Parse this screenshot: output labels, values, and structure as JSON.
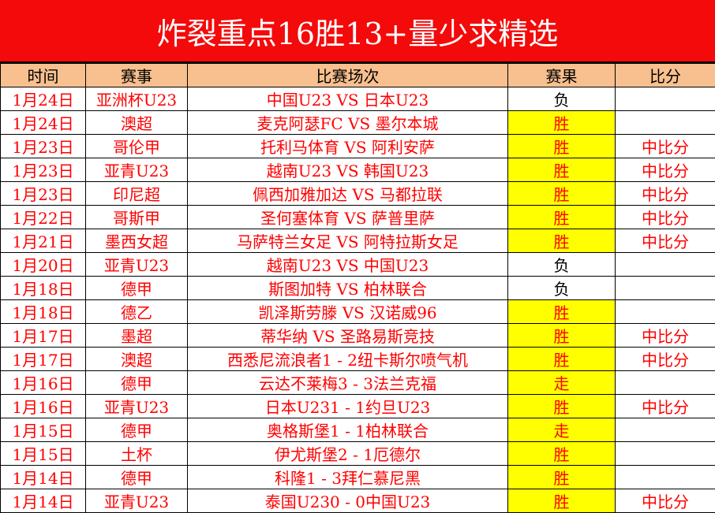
{
  "title": "炸裂重点16胜13+量少求精选",
  "colors": {
    "title_bg": "#f40a0a",
    "header_bg": "#f8c08e",
    "highlight": "#ffff00",
    "text": "#ff0000"
  },
  "headers": [
    "时间",
    "赛事",
    "比赛场次",
    "赛果",
    "比分"
  ],
  "rows": [
    {
      "date": "1月24日",
      "league": "亚洲杯U23",
      "match": "中国U23 VS 日本U23",
      "result": "负",
      "score": ""
    },
    {
      "date": "1月24日",
      "league": "澳超",
      "match": "麦克阿瑟FC VS 墨尔本城",
      "result": "胜",
      "score": ""
    },
    {
      "date": "1月23日",
      "league": "哥伦甲",
      "match": "托利马体育 VS 阿利安萨",
      "result": "胜",
      "score": "中比分"
    },
    {
      "date": "1月23日",
      "league": "亚青U23",
      "match": "越南U23 VS 韩国U23",
      "result": "胜",
      "score": "中比分"
    },
    {
      "date": "1月23日",
      "league": "印尼超",
      "match": "佩西加雅加达 VS 马都拉联",
      "result": "胜",
      "score": "中比分"
    },
    {
      "date": "1月22日",
      "league": "哥斯甲",
      "match": "圣何塞体育 VS 萨普里萨",
      "result": "胜",
      "score": "中比分"
    },
    {
      "date": "1月21日",
      "league": "墨西女超",
      "match": "马萨特兰女足 VS 阿特拉斯女足",
      "result": "胜",
      "score": "中比分"
    },
    {
      "date": "1月20日",
      "league": "亚青U23",
      "match": "越南U23 VS 中国U23",
      "result": "负",
      "score": ""
    },
    {
      "date": "1月18日",
      "league": "德甲",
      "match": "斯图加特 VS 柏林联合",
      "result": "负",
      "score": ""
    },
    {
      "date": "1月18日",
      "league": "德乙",
      "match": "凯泽斯劳滕 VS 汉诺威96",
      "result": "胜",
      "score": ""
    },
    {
      "date": "1月17日",
      "league": "墨超",
      "match": "蒂华纳 VS 圣路易斯竞技",
      "result": "胜",
      "score": "中比分"
    },
    {
      "date": "1月17日",
      "league": "澳超",
      "match": "西悉尼流浪者1 - 2纽卡斯尔喷气机",
      "result": "胜",
      "score": "中比分"
    },
    {
      "date": "1月16日",
      "league": "德甲",
      "match": "云达不莱梅3 - 3法兰克福",
      "result": "走",
      "score": ""
    },
    {
      "date": "1月16日",
      "league": "亚青U23",
      "match": "日本U231 - 1约旦U23",
      "result": "胜",
      "score": "中比分"
    },
    {
      "date": "1月15日",
      "league": "德甲",
      "match": "奥格斯堡1 - 1柏林联合",
      "result": "走",
      "score": ""
    },
    {
      "date": "1月15日",
      "league": "土杯",
      "match": "伊尤斯堡2 - 1厄德尔",
      "result": "胜",
      "score": ""
    },
    {
      "date": "1月14日",
      "league": "德甲",
      "match": "科隆1 - 3拜仁慕尼黑",
      "result": "胜",
      "score": ""
    },
    {
      "date": "1月14日",
      "league": "亚青U23",
      "match": "泰国U230 - 0中国U23",
      "result": "胜",
      "score": "中比分"
    }
  ]
}
